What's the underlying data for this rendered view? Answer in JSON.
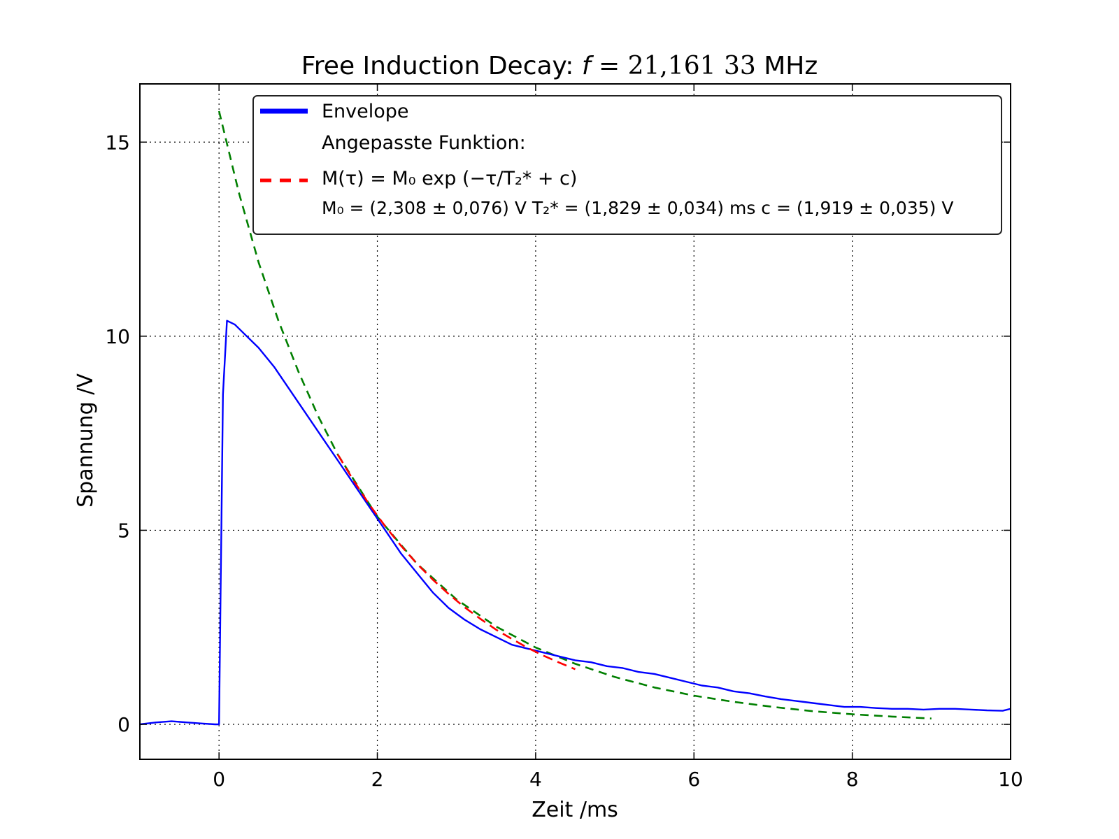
{
  "chart_data": {
    "type": "line",
    "title": "Free Induction Decay: f = 21,161 33 MHz",
    "title_parts": {
      "prefix": "Free Induction Decay: ",
      "var": "f",
      "eq": " = ",
      "value": "21,161 33",
      "unit": " MHz"
    },
    "xlabel": "Zeit /ms",
    "ylabel": "Spannung /V",
    "xlim": [
      -1,
      10
    ],
    "ylim": [
      -0.9,
      16.5
    ],
    "xticks": [
      0,
      2,
      4,
      6,
      8,
      10
    ],
    "yticks": [
      0,
      5,
      10,
      15
    ],
    "xtick_labels": [
      "0",
      "2",
      "4",
      "6",
      "8",
      "10"
    ],
    "ytick_labels": [
      "0",
      "5",
      "10",
      "15"
    ],
    "grid": true,
    "grid_style": "dotted",
    "legend_placement": "top-right",
    "legend": {
      "entry1": "Envelope",
      "entry2_title": "Angepasste Funktion:",
      "formula": "M(τ) = M₀ exp (−τ/T₂* + c)",
      "params": "M₀ = (2,308 ± 0,076) V    T₂* = (1,829 ± 0,034) ms    c = (1,919 ± 0,035) V"
    },
    "fit_parameters": {
      "M0": 2.308,
      "M0_err": 0.076,
      "T2": 1.829,
      "T2_err": 0.034,
      "c": 1.919,
      "c_err": 0.035
    },
    "series": [
      {
        "name": "Envelope",
        "color": "#0000ff",
        "x": [
          -1.0,
          -0.8,
          -0.6,
          -0.4,
          -0.2,
          -0.05,
          0.0,
          0.05,
          0.1,
          0.2,
          0.3,
          0.5,
          0.7,
          0.9,
          1.1,
          1.3,
          1.5,
          1.7,
          1.9,
          2.1,
          2.3,
          2.5,
          2.7,
          2.9,
          3.1,
          3.3,
          3.5,
          3.7,
          3.9,
          4.1,
          4.3,
          4.5,
          4.7,
          4.9,
          5.1,
          5.3,
          5.5,
          5.7,
          5.9,
          6.1,
          6.3,
          6.5,
          6.7,
          6.9,
          7.1,
          7.3,
          7.5,
          7.7,
          7.9,
          8.1,
          8.3,
          8.5,
          8.7,
          8.9,
          9.1,
          9.3,
          9.5,
          9.7,
          9.9,
          10.0
        ],
        "y": [
          0.0,
          0.05,
          0.08,
          0.05,
          0.02,
          0.0,
          0.0,
          8.5,
          10.4,
          10.3,
          10.1,
          9.7,
          9.2,
          8.6,
          8.0,
          7.4,
          6.8,
          6.2,
          5.6,
          5.0,
          4.4,
          3.9,
          3.4,
          3.0,
          2.7,
          2.45,
          2.25,
          2.05,
          1.95,
          1.85,
          1.75,
          1.65,
          1.6,
          1.5,
          1.45,
          1.35,
          1.3,
          1.2,
          1.1,
          1.0,
          0.95,
          0.85,
          0.8,
          0.72,
          0.65,
          0.6,
          0.55,
          0.5,
          0.45,
          0.45,
          0.42,
          0.4,
          0.4,
          0.38,
          0.4,
          0.4,
          0.38,
          0.36,
          0.35,
          0.4
        ]
      },
      {
        "name": "Angepasste Funktion",
        "color": "#ff0000",
        "dash": "red-dashed",
        "x": [
          1.5,
          1.7,
          1.9,
          2.1,
          2.3,
          2.5,
          2.7,
          2.9,
          3.1,
          3.3,
          3.5,
          3.7,
          3.9,
          4.1,
          4.3,
          4.5
        ],
        "y": [
          6.95,
          6.28,
          5.66,
          5.1,
          4.6,
          4.14,
          3.73,
          3.36,
          3.02,
          2.72,
          2.44,
          2.2,
          1.97,
          1.77,
          1.59,
          1.42
        ]
      },
      {
        "color": "#007f00",
        "dash": "green-dashed",
        "x": [
          0.0,
          0.25,
          0.5,
          0.75,
          1.0,
          1.25,
          1.5,
          2.0,
          2.5,
          3.0,
          3.5,
          4.0,
          4.5,
          5.0,
          5.5,
          6.0,
          6.5,
          7.0,
          7.5,
          8.0,
          8.5,
          9.0
        ],
        "y": [
          15.8,
          13.7,
          11.9,
          10.4,
          9.1,
          7.95,
          6.95,
          5.35,
          4.14,
          3.22,
          2.52,
          1.98,
          1.56,
          1.22,
          0.95,
          0.74,
          0.58,
          0.45,
          0.34,
          0.26,
          0.2,
          0.15
        ]
      }
    ]
  }
}
